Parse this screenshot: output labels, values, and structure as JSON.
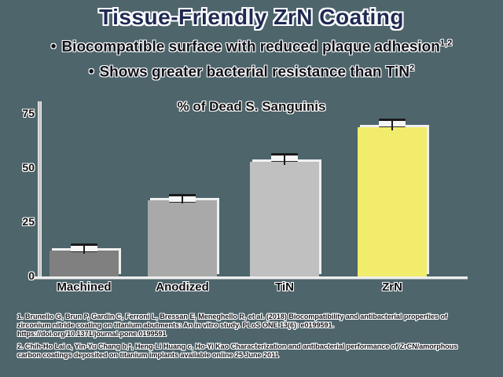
{
  "colors": {
    "background": "#4e656c",
    "title": "#1f2a52",
    "body_text": "#101018",
    "highlight_bar": "#f2ec6d"
  },
  "slide": {
    "title": "Tissue-Friendly ZrN Coating",
    "bullets": [
      {
        "marker": "•",
        "text": "Biocompatible surface with reduced plaque adhesion",
        "superscript": "1,2"
      },
      {
        "marker": "•",
        "text": "Shows greater bacterial resistance than TiN",
        "superscript": "2"
      }
    ]
  },
  "chart_data": {
    "type": "bar",
    "title": "% of Dead S. Sanguinis",
    "categories": [
      "Machined",
      "Anodized",
      "TiN",
      "ZrN"
    ],
    "values": [
      12,
      35,
      53,
      69
    ],
    "error_upper": [
      2.5,
      2.5,
      3,
      3
    ],
    "bar_colors": [
      "#808080",
      "#a9a9a9",
      "#c0c0c0",
      "#f2ec6d"
    ],
    "xlabel": "",
    "ylabel": "",
    "ylim": [
      0,
      80
    ],
    "yticks": [
      0,
      25,
      50,
      75
    ],
    "grid": false,
    "legend": "none",
    "error_bars": true
  },
  "footnotes": [
    "1. Brunello G, Brun P, Gardin C, Ferroni L, Bressan E, Meneghello R, et al. (2018) Biocompatibility and antibacterial properties of zirconium nitride coating on titanium abutments: An in vitro study. PLoS ONE 13(6): e0199591. https://doi.org/10.1371/journal.pone.0199591",
    "2. Chih-Ho Lai a, Yin-Yu Chang b,*, Heng-Li Huang c, Ho-Yi Kao Characterization and antibacterial performance of ZrCN/amorphous carbon coatings deposited on titanium implants available online 25 June 2011"
  ]
}
